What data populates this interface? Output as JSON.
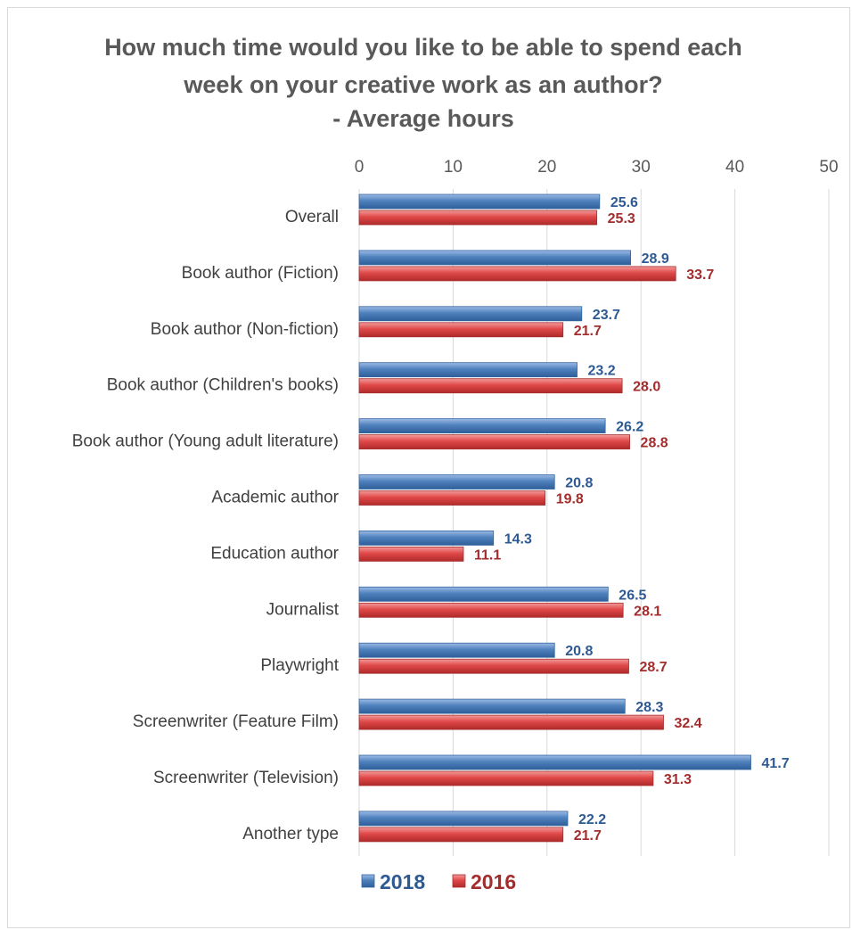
{
  "chart_data": {
    "type": "bar",
    "orientation": "horizontal",
    "title_lines": [
      "How much time would you like to be able to spend each",
      "week on your creative work as an author?",
      "- Average hours"
    ],
    "xlim": [
      0,
      50
    ],
    "x_ticks": [
      "0",
      "10",
      "20",
      "30",
      "40",
      "50"
    ],
    "grid": true,
    "legend_position": "bottom",
    "categories": [
      "Overall",
      "Book author (Fiction)",
      "Book author (Non-fiction)",
      "Book author (Children's books)",
      "Book author (Young adult literature)",
      "Academic author",
      "Education author",
      "Journalist",
      "Playwright",
      "Screenwriter (Feature Film)",
      "Screenwriter (Television)",
      "Another type"
    ],
    "series": [
      {
        "name": "2018",
        "color": "#4f81bd",
        "label_color": "#2e5a93",
        "values": [
          25.6,
          28.9,
          23.7,
          23.2,
          26.2,
          20.8,
          14.3,
          26.5,
          20.8,
          28.3,
          41.7,
          22.2
        ],
        "labels": [
          "25.6",
          "28.9",
          "23.7",
          "23.2",
          "26.2",
          "20.8",
          "14.3",
          "26.5",
          "20.8",
          "28.3",
          "41.7",
          "22.2"
        ]
      },
      {
        "name": "2016",
        "color": "#e04848",
        "label_color": "#a32d2d",
        "values": [
          25.3,
          33.7,
          21.7,
          28.0,
          28.8,
          19.8,
          11.1,
          28.1,
          28.7,
          32.4,
          31.3,
          21.7
        ],
        "labels": [
          "25.3",
          "33.7",
          "21.7",
          "28.0",
          "28.8",
          "19.8",
          "11.1",
          "28.1",
          "28.7",
          "32.4",
          "31.3",
          "21.7"
        ]
      }
    ]
  }
}
